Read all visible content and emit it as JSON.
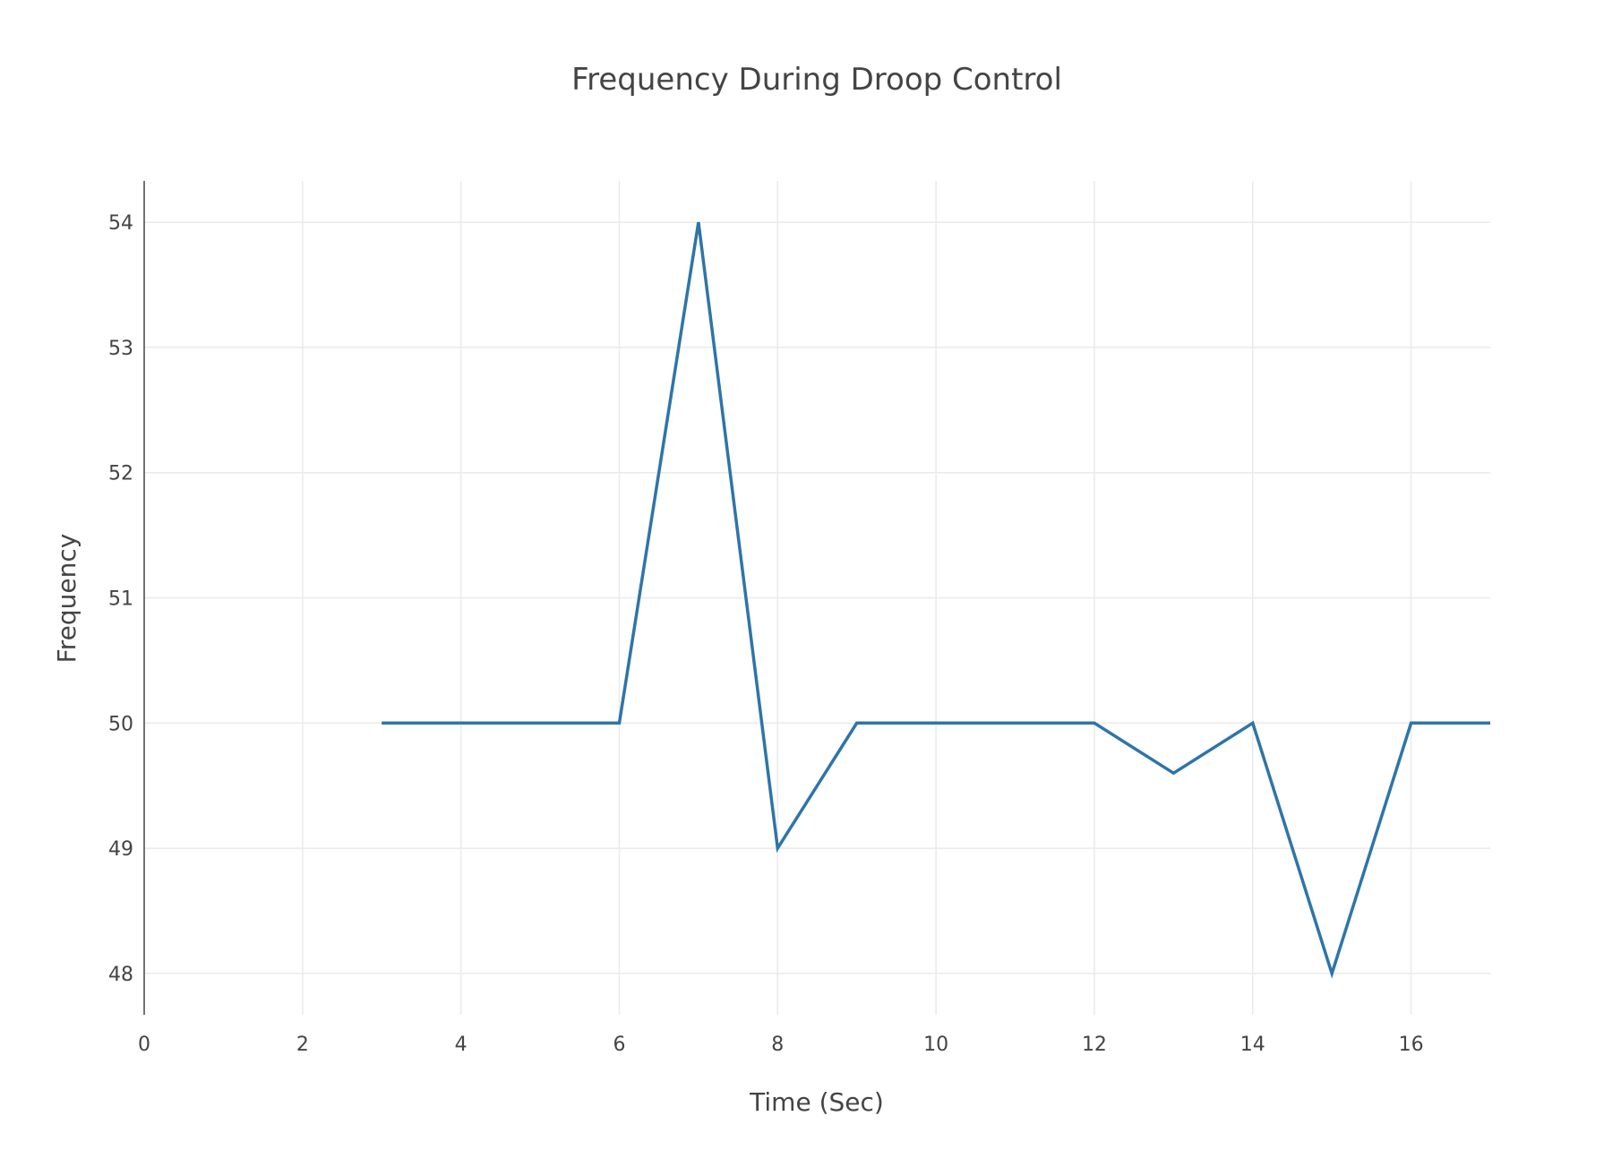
{
  "chart_data": {
    "type": "line",
    "title": "Frequency During Droop Control",
    "xlabel": "Time (Sec)",
    "ylabel": "Frequency",
    "xlim": [
      0,
      17
    ],
    "ylim": [
      47.67,
      54.33
    ],
    "x_ticks": [
      0,
      2,
      4,
      6,
      8,
      10,
      12,
      14,
      16
    ],
    "y_ticks": [
      48,
      49,
      50,
      51,
      52,
      53,
      54
    ],
    "grid": true,
    "legend": "none",
    "series": [
      {
        "color": "#2e75a8",
        "x": [
          3,
          4,
          5,
          6,
          7,
          8,
          9,
          10,
          11,
          12,
          13,
          14,
          15,
          16,
          17
        ],
        "y": [
          50,
          50,
          50,
          50,
          54,
          49,
          50,
          50,
          50,
          50,
          49.6,
          50,
          48,
          50,
          50
        ]
      }
    ]
  }
}
